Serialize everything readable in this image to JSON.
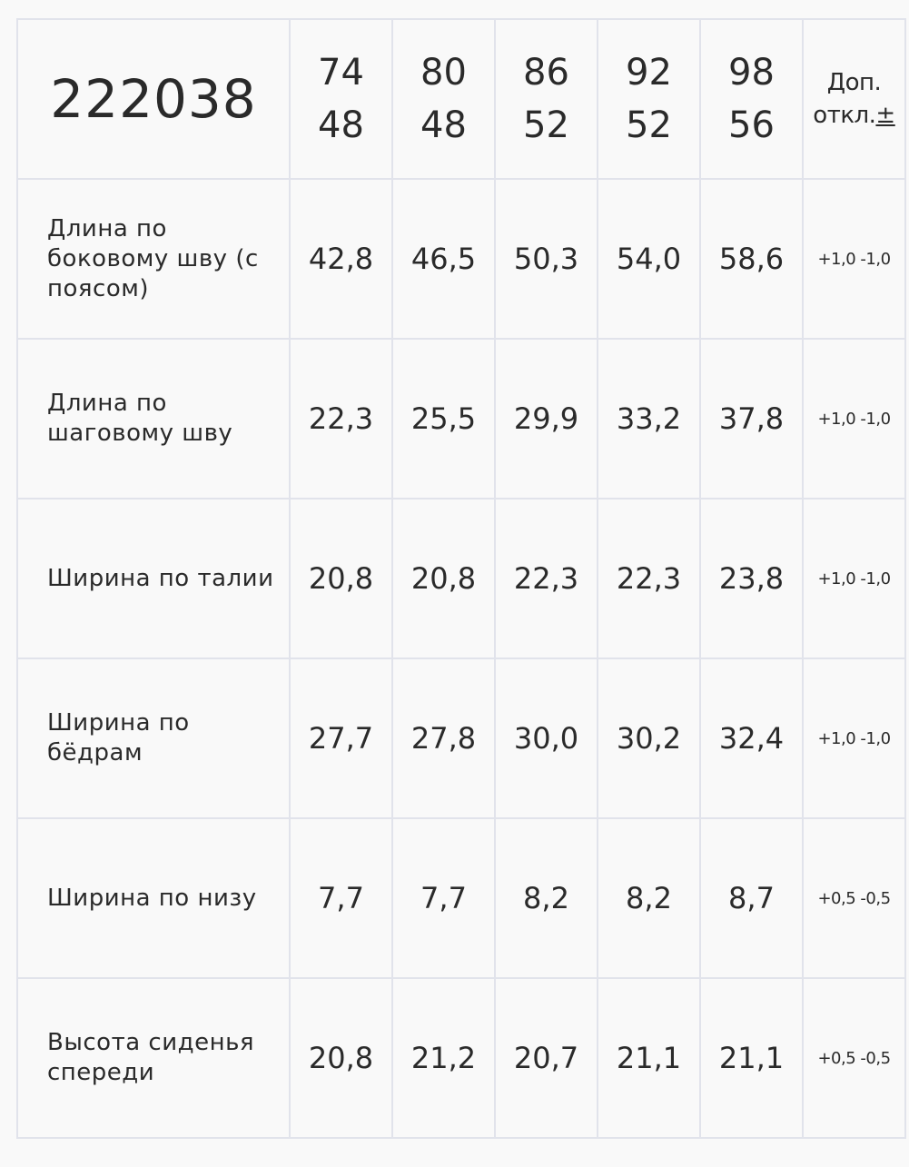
{
  "table": {
    "code": "222038",
    "sizes": [
      {
        "height": "74",
        "chest": "48"
      },
      {
        "height": "80",
        "chest": "48"
      },
      {
        "height": "86",
        "chest": "52"
      },
      {
        "height": "92",
        "chest": "52"
      },
      {
        "height": "98",
        "chest": "56"
      }
    ],
    "tolerance_header": {
      "line1": "Доп.",
      "line2": "откл.",
      "symbol": "±"
    },
    "rows": [
      {
        "name": "Длина по боковому шву (с поясом)",
        "values": [
          "42,8",
          "46,5",
          "50,3",
          "54,0",
          "58,6"
        ],
        "tolerance": "+1,0 -1,0"
      },
      {
        "name": "Длина по шаговому шву",
        "values": [
          "22,3",
          "25,5",
          "29,9",
          "33,2",
          "37,8"
        ],
        "tolerance": "+1,0 -1,0"
      },
      {
        "name": "Ширина по талии",
        "values": [
          "20,8",
          "20,8",
          "22,3",
          "22,3",
          "23,8"
        ],
        "tolerance": "+1,0 -1,0"
      },
      {
        "name": "Ширина по бёдрам",
        "values": [
          "27,7",
          "27,8",
          "30,0",
          "30,2",
          "32,4"
        ],
        "tolerance": "+1,0 -1,0"
      },
      {
        "name": "Ширина по низу",
        "values": [
          "7,7",
          "7,7",
          "8,2",
          "8,2",
          "8,7"
        ],
        "tolerance": "+0,5 -0,5"
      },
      {
        "name": "Высота сиденья спереди",
        "values": [
          "20,8",
          "21,2",
          "20,7",
          "21,1",
          "21,1"
        ],
        "tolerance": "+0,5 -0,5"
      }
    ]
  }
}
